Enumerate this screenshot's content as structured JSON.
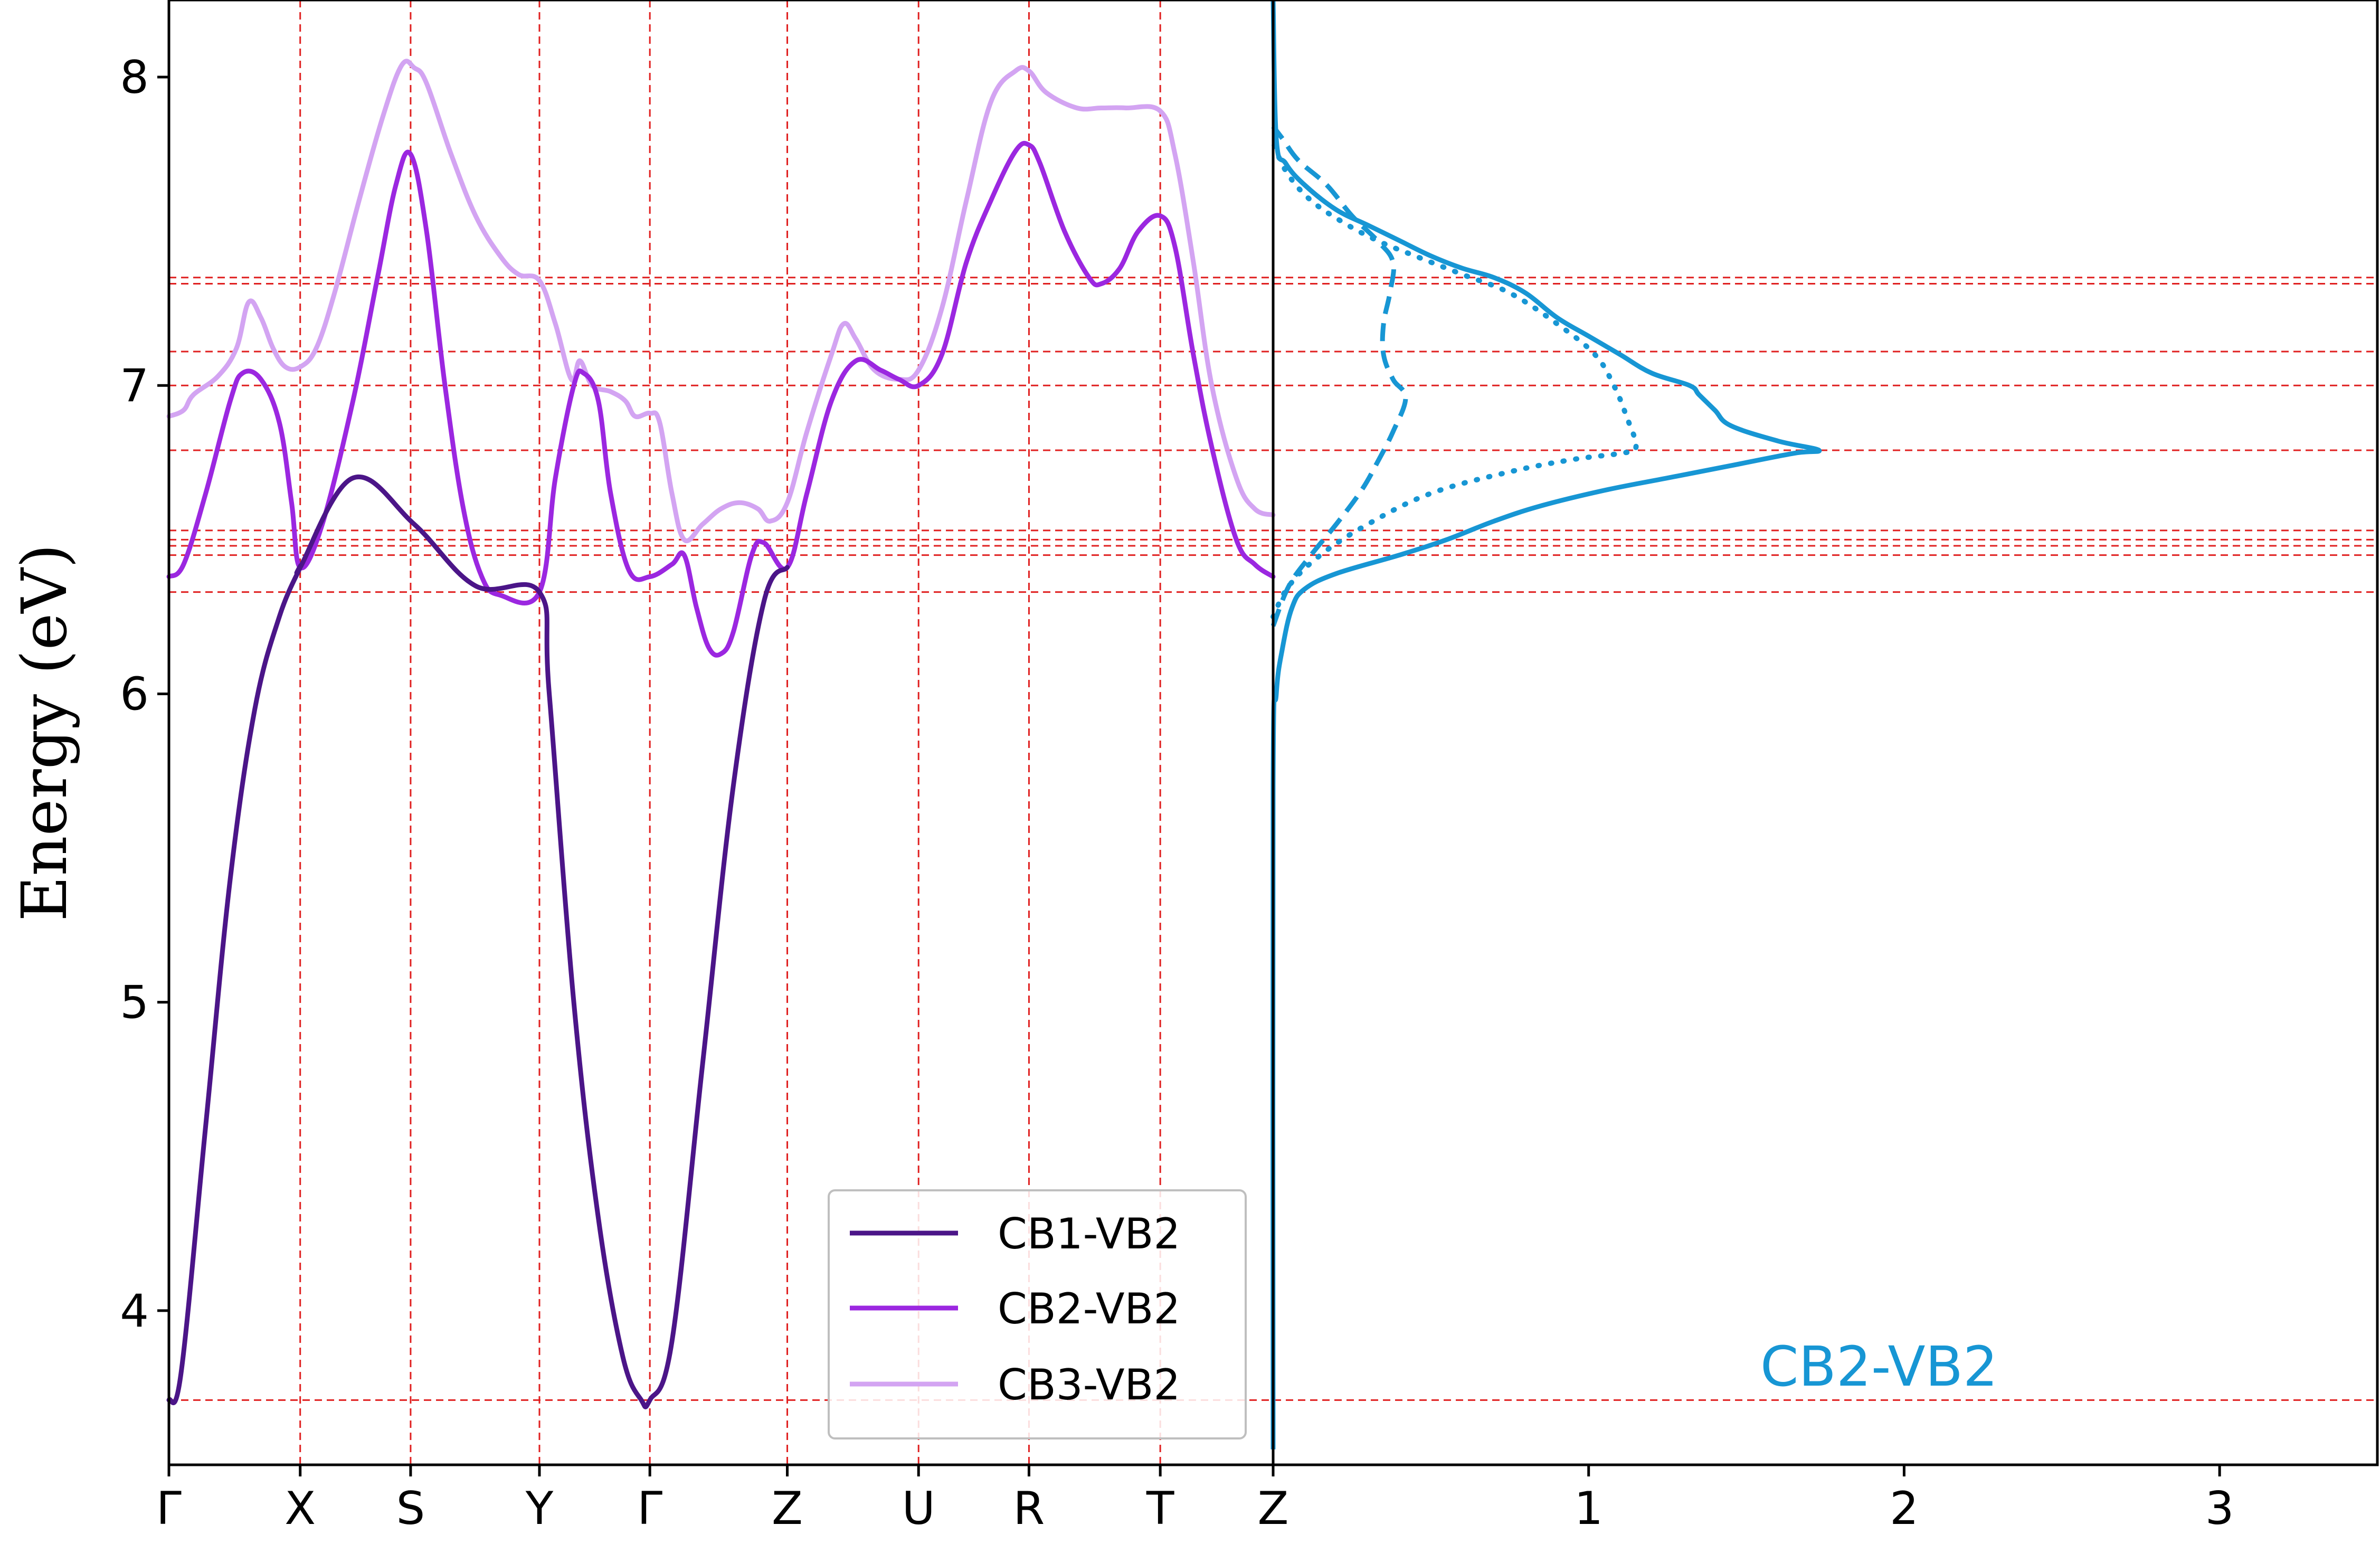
{
  "chart_data": [
    {
      "type": "line",
      "panel": "band-energy-differences",
      "ylabel": "Energy (eV)",
      "ylim": [
        3.5,
        8.25
      ],
      "yticks": [
        4,
        5,
        6,
        7,
        8
      ],
      "xlim": [
        0,
        9
      ],
      "k_points": [
        {
          "label": "Γ",
          "x": 0
        },
        {
          "label": "X",
          "x": 1.07
        },
        {
          "label": "S",
          "x": 1.97
        },
        {
          "label": "Y",
          "x": 3.02
        },
        {
          "label": "Γ",
          "x": 3.92
        },
        {
          "label": "Z",
          "x": 5.04
        },
        {
          "label": "U",
          "x": 6.11
        },
        {
          "label": "R",
          "x": 7.01
        },
        {
          "label": "T",
          "x": 8.08
        },
        {
          "label": "Z",
          "x": 9
        }
      ],
      "reference_energies": [
        3.71,
        6.33,
        6.45,
        6.48,
        6.5,
        6.53,
        6.79,
        7.0,
        7.11,
        7.33,
        7.35
      ],
      "grid": "red dashed at k-points and reference energies",
      "legend_position": "lower-center",
      "series": [
        {
          "name": "CB1-VB2",
          "color": "#4b1588",
          "points": [
            [
              0,
              3.71
            ],
            [
              0.1,
              3.8
            ],
            [
              0.3,
              4.6
            ],
            [
              0.5,
              5.4
            ],
            [
              0.7,
              5.95
            ],
            [
              0.9,
              6.25
            ],
            [
              1.07,
              6.41
            ],
            [
              1.07,
              6.41
            ],
            [
              1.5,
              6.7
            ],
            [
              2.0,
              6.55
            ],
            [
              2.5,
              6.35
            ],
            [
              3.02,
              6.33
            ],
            [
              3.1,
              6.0
            ],
            [
              3.3,
              5.0
            ],
            [
              3.5,
              4.3
            ],
            [
              3.7,
              3.85
            ],
            [
              3.85,
              3.71
            ],
            [
              3.92,
              3.71
            ],
            [
              4.1,
              3.9
            ],
            [
              4.35,
              4.8
            ],
            [
              4.6,
              5.7
            ],
            [
              4.85,
              6.3
            ],
            [
              5.04,
              6.41
            ]
          ]
        },
        {
          "name": "CB2-VB2",
          "color": "#9b27e0",
          "points": [
            [
              0,
              6.38
            ],
            [
              0.12,
              6.42
            ],
            [
              0.3,
              6.65
            ],
            [
              0.5,
              6.95
            ],
            [
              0.6,
              7.04
            ],
            [
              0.75,
              7.02
            ],
            [
              0.9,
              6.88
            ],
            [
              1.0,
              6.62
            ],
            [
              1.07,
              6.41
            ],
            [
              1.25,
              6.55
            ],
            [
              1.5,
              6.95
            ],
            [
              1.7,
              7.35
            ],
            [
              1.85,
              7.65
            ],
            [
              1.97,
              7.75
            ],
            [
              2.1,
              7.5
            ],
            [
              2.25,
              7.0
            ],
            [
              2.4,
              6.6
            ],
            [
              2.55,
              6.38
            ],
            [
              2.7,
              6.32
            ],
            [
              3.02,
              6.33
            ],
            [
              3.15,
              6.7
            ],
            [
              3.3,
              7.0
            ],
            [
              3.38,
              7.04
            ],
            [
              3.5,
              6.95
            ],
            [
              3.6,
              6.65
            ],
            [
              3.75,
              6.4
            ],
            [
              3.92,
              6.38
            ],
            [
              4.1,
              6.42
            ],
            [
              4.2,
              6.45
            ],
            [
              4.3,
              6.28
            ],
            [
              4.4,
              6.15
            ],
            [
              4.5,
              6.13
            ],
            [
              4.6,
              6.2
            ],
            [
              4.75,
              6.45
            ],
            [
              4.85,
              6.49
            ],
            [
              5.04,
              6.41
            ],
            [
              5.2,
              6.65
            ],
            [
              5.4,
              6.95
            ],
            [
              5.6,
              7.08
            ],
            [
              5.8,
              7.05
            ],
            [
              5.95,
              7.02
            ],
            [
              6.11,
              7.0
            ],
            [
              6.3,
              7.1
            ],
            [
              6.5,
              7.4
            ],
            [
              6.7,
              7.6
            ],
            [
              6.9,
              7.76
            ],
            [
              7.01,
              7.78
            ],
            [
              7.1,
              7.72
            ],
            [
              7.3,
              7.5
            ],
            [
              7.5,
              7.35
            ],
            [
              7.6,
              7.33
            ],
            [
              7.75,
              7.38
            ],
            [
              7.9,
              7.5
            ],
            [
              8.08,
              7.55
            ],
            [
              8.2,
              7.45
            ],
            [
              8.35,
              7.1
            ],
            [
              8.5,
              6.8
            ],
            [
              8.7,
              6.5
            ],
            [
              8.85,
              6.42
            ],
            [
              9,
              6.38
            ]
          ]
        },
        {
          "name": "CB3-VB2",
          "color": "#d3a4f2",
          "points": [
            [
              0,
              6.9
            ],
            [
              0.12,
              6.92
            ],
            [
              0.2,
              6.97
            ],
            [
              0.4,
              7.03
            ],
            [
              0.55,
              7.12
            ],
            [
              0.65,
              7.27
            ],
            [
              0.75,
              7.22
            ],
            [
              0.85,
              7.12
            ],
            [
              0.95,
              7.06
            ],
            [
              1.07,
              7.06
            ],
            [
              1.2,
              7.12
            ],
            [
              1.35,
              7.3
            ],
            [
              1.55,
              7.6
            ],
            [
              1.75,
              7.88
            ],
            [
              1.9,
              8.04
            ],
            [
              2.0,
              8.03
            ],
            [
              2.1,
              7.98
            ],
            [
              2.3,
              7.75
            ],
            [
              2.5,
              7.55
            ],
            [
              2.7,
              7.42
            ],
            [
              2.85,
              7.36
            ],
            [
              3.02,
              7.34
            ],
            [
              3.15,
              7.2
            ],
            [
              3.28,
              7.02
            ],
            [
              3.35,
              7.08
            ],
            [
              3.45,
              7.0
            ],
            [
              3.6,
              6.98
            ],
            [
              3.72,
              6.95
            ],
            [
              3.8,
              6.9
            ],
            [
              3.92,
              6.91
            ],
            [
              4.0,
              6.88
            ],
            [
              4.1,
              6.65
            ],
            [
              4.2,
              6.5
            ],
            [
              4.35,
              6.55
            ],
            [
              4.5,
              6.6
            ],
            [
              4.65,
              6.62
            ],
            [
              4.8,
              6.6
            ],
            [
              4.9,
              6.56
            ],
            [
              5.04,
              6.62
            ],
            [
              5.2,
              6.85
            ],
            [
              5.4,
              7.1
            ],
            [
              5.5,
              7.2
            ],
            [
              5.6,
              7.15
            ],
            [
              5.75,
              7.05
            ],
            [
              5.95,
              7.02
            ],
            [
              6.11,
              7.05
            ],
            [
              6.3,
              7.25
            ],
            [
              6.5,
              7.6
            ],
            [
              6.7,
              7.92
            ],
            [
              6.9,
              8.02
            ],
            [
              7.01,
              8.02
            ],
            [
              7.15,
              7.95
            ],
            [
              7.4,
              7.9
            ],
            [
              7.6,
              7.9
            ],
            [
              7.8,
              7.9
            ],
            [
              8.08,
              7.89
            ],
            [
              8.2,
              7.75
            ],
            [
              8.35,
              7.4
            ],
            [
              8.5,
              7.0
            ],
            [
              8.7,
              6.7
            ],
            [
              8.85,
              6.6
            ],
            [
              9,
              6.58
            ]
          ]
        }
      ]
    },
    {
      "type": "line",
      "panel": "joint-density-of-states",
      "label": "CB2-VB2",
      "label_color": "#1796d4",
      "xlim": [
        0,
        3.5
      ],
      "xticks": [
        1,
        2,
        3
      ],
      "ylim": [
        3.5,
        8.25
      ],
      "series": [
        {
          "style": "solid",
          "color": "#1796d4",
          "points": [
            [
              0,
              3.55
            ],
            [
              0,
              5.7
            ],
            [
              0.01,
              6.0
            ],
            [
              0.03,
              6.15
            ],
            [
              0.06,
              6.28
            ],
            [
              0.1,
              6.34
            ],
            [
              0.2,
              6.39
            ],
            [
              0.4,
              6.45
            ],
            [
              0.55,
              6.5
            ],
            [
              0.7,
              6.56
            ],
            [
              0.85,
              6.61
            ],
            [
              1.05,
              6.66
            ],
            [
              1.25,
              6.7
            ],
            [
              1.45,
              6.74
            ],
            [
              1.65,
              6.78
            ],
            [
              1.73,
              6.79
            ],
            [
              1.6,
              6.82
            ],
            [
              1.45,
              6.87
            ],
            [
              1.4,
              6.92
            ],
            [
              1.35,
              6.97
            ],
            [
              1.32,
              7.0
            ],
            [
              1.2,
              7.04
            ],
            [
              1.1,
              7.1
            ],
            [
              1.0,
              7.16
            ],
            [
              0.9,
              7.22
            ],
            [
              0.8,
              7.3
            ],
            [
              0.7,
              7.35
            ],
            [
              0.6,
              7.38
            ],
            [
              0.5,
              7.42
            ],
            [
              0.4,
              7.47
            ],
            [
              0.3,
              7.52
            ],
            [
              0.2,
              7.57
            ],
            [
              0.1,
              7.65
            ],
            [
              0.04,
              7.72
            ],
            [
              0.01,
              7.8
            ],
            [
              0,
              8.25
            ]
          ]
        },
        {
          "style": "dashed",
          "color": "#1796d4",
          "points": [
            [
              0,
              6.22
            ],
            [
              0.05,
              6.35
            ],
            [
              0.12,
              6.45
            ],
            [
              0.2,
              6.55
            ],
            [
              0.28,
              6.66
            ],
            [
              0.33,
              6.75
            ],
            [
              0.38,
              6.85
            ],
            [
              0.42,
              6.96
            ],
            [
              0.38,
              7.02
            ],
            [
              0.35,
              7.1
            ],
            [
              0.35,
              7.2
            ],
            [
              0.37,
              7.3
            ],
            [
              0.38,
              7.4
            ],
            [
              0.33,
              7.47
            ],
            [
              0.25,
              7.55
            ],
            [
              0.17,
              7.65
            ],
            [
              0.08,
              7.73
            ],
            [
              0.03,
              7.8
            ],
            [
              0,
              7.84
            ]
          ]
        },
        {
          "style": "dotted",
          "color": "#1796d4",
          "points": [
            [
              0,
              6.25
            ],
            [
              0.05,
              6.35
            ],
            [
              0.15,
              6.45
            ],
            [
              0.3,
              6.55
            ],
            [
              0.5,
              6.65
            ],
            [
              0.75,
              6.72
            ],
            [
              0.95,
              6.76
            ],
            [
              1.1,
              6.78
            ],
            [
              1.15,
              6.8
            ],
            [
              1.12,
              6.9
            ],
            [
              1.08,
              7.0
            ],
            [
              1.02,
              7.1
            ],
            [
              0.9,
              7.2
            ],
            [
              0.75,
              7.3
            ],
            [
              0.6,
              7.36
            ],
            [
              0.45,
              7.42
            ],
            [
              0.33,
              7.47
            ],
            [
              0.22,
              7.53
            ],
            [
              0.12,
              7.6
            ],
            [
              0.05,
              7.68
            ],
            [
              0.01,
              7.76
            ],
            [
              0,
              7.8
            ]
          ]
        }
      ]
    }
  ]
}
